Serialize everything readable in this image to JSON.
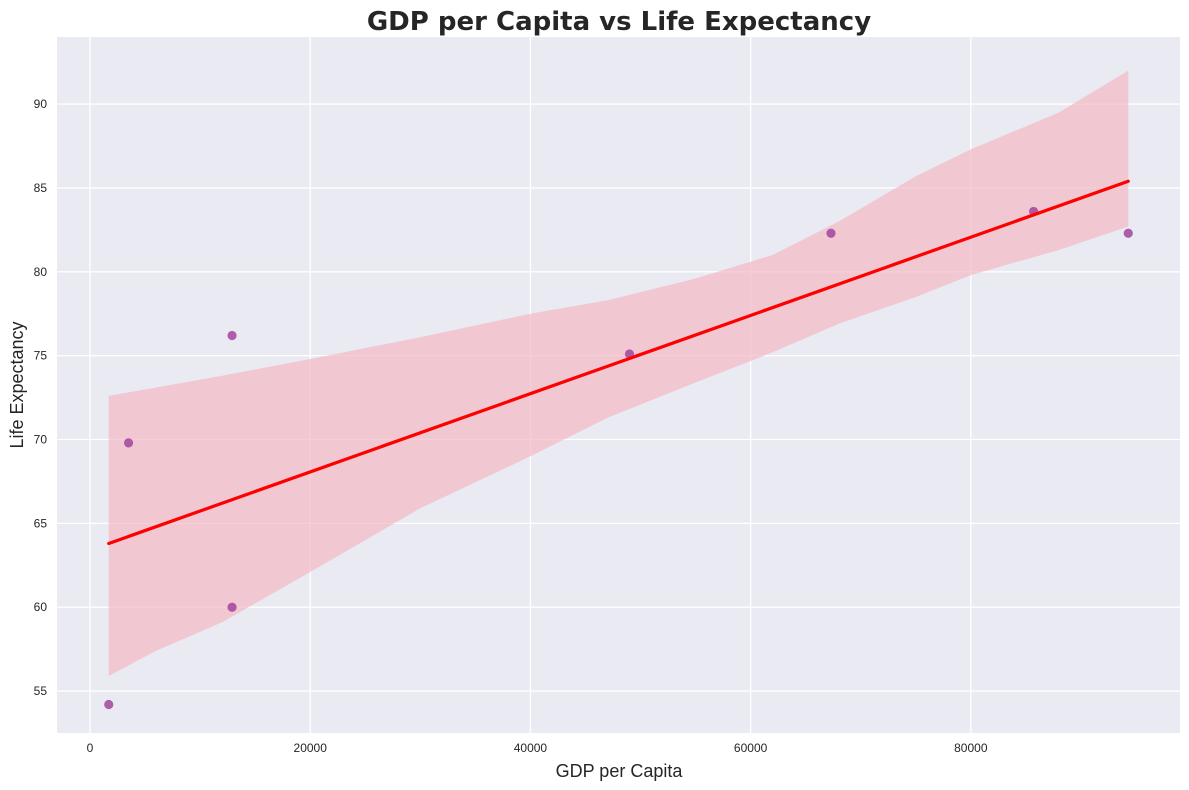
{
  "chart_data": {
    "type": "scatter",
    "title": "GDP per Capita vs Life Expectancy",
    "xlabel": "GDP per Capita",
    "ylabel": "Life Expectancy",
    "xlim": [
      -3000,
      99000
    ],
    "ylim": [
      52.5,
      94.0
    ],
    "xticks": [
      0,
      20000,
      40000,
      60000,
      80000
    ],
    "yticks": [
      55,
      60,
      65,
      70,
      75,
      80,
      85,
      90
    ],
    "grid": true,
    "points": [
      {
        "x": 1700,
        "y": 54.2
      },
      {
        "x": 3500,
        "y": 69.8
      },
      {
        "x": 12900,
        "y": 76.2
      },
      {
        "x": 12900,
        "y": 60.0
      },
      {
        "x": 49000,
        "y": 75.1
      },
      {
        "x": 67300,
        "y": 82.3
      },
      {
        "x": 85700,
        "y": 83.6
      },
      {
        "x": 94300,
        "y": 82.3
      }
    ],
    "regression_line": {
      "x": [
        1700,
        94300
      ],
      "y": [
        63.8,
        85.4
      ]
    },
    "confidence_band": {
      "x": [
        1700,
        6000,
        12000,
        20000,
        30000,
        40000,
        47000,
        55000,
        62000,
        68000,
        75000,
        80000,
        88000,
        94300
      ],
      "lower": [
        55.9,
        57.4,
        59.1,
        62.1,
        65.9,
        69.0,
        71.3,
        73.4,
        75.2,
        76.9,
        78.5,
        79.8,
        81.3,
        82.7
      ],
      "upper": [
        72.6,
        73.1,
        73.8,
        74.8,
        76.1,
        77.5,
        78.3,
        79.6,
        81.0,
        83.0,
        85.7,
        87.3,
        89.5,
        92.0
      ]
    },
    "colors": {
      "background": "#eaeaf2",
      "grid": "#ffffff",
      "points": "#a2449e",
      "line": "#ff0000",
      "band": "#f4b8c4"
    }
  }
}
